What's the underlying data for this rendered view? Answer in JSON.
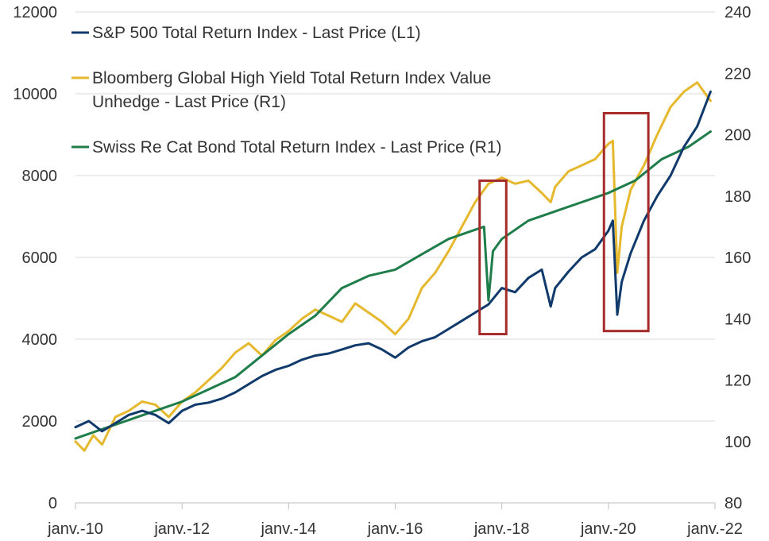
{
  "chart_data": {
    "type": "line",
    "title": "",
    "xlabel": "",
    "ylabel": "",
    "x_ticks": [
      "janv.-10",
      "janv.-12",
      "janv.-14",
      "janv.-16",
      "janv.-18",
      "janv.-20",
      "janv.-22"
    ],
    "y_left": {
      "min": 0,
      "max": 12000,
      "ticks": [
        0,
        2000,
        4000,
        6000,
        8000,
        10000,
        12000
      ]
    },
    "y_right": {
      "min": 80,
      "max": 240,
      "ticks": [
        80,
        100,
        120,
        140,
        160,
        180,
        200,
        220,
        240
      ]
    },
    "xlim": [
      "2010-01",
      "2022-01"
    ],
    "grid": "horizontal",
    "legend_placement": "top-left",
    "series": [
      {
        "name": "S&P 500 Total Return Index - Last Price (L1)",
        "axis": "left",
        "color": "#0f3a6b",
        "data": [
          [
            "2010-01",
            1850
          ],
          [
            "2010-04",
            2000
          ],
          [
            "2010-07",
            1750
          ],
          [
            "2010-10",
            1950
          ],
          [
            "2011-01",
            2150
          ],
          [
            "2011-04",
            2250
          ],
          [
            "2011-07",
            2150
          ],
          [
            "2011-10",
            1950
          ],
          [
            "2012-01",
            2250
          ],
          [
            "2012-04",
            2400
          ],
          [
            "2012-07",
            2450
          ],
          [
            "2012-10",
            2550
          ],
          [
            "2013-01",
            2700
          ],
          [
            "2013-04",
            2900
          ],
          [
            "2013-07",
            3100
          ],
          [
            "2013-10",
            3250
          ],
          [
            "2014-01",
            3350
          ],
          [
            "2014-04",
            3500
          ],
          [
            "2014-07",
            3600
          ],
          [
            "2014-10",
            3650
          ],
          [
            "2015-01",
            3750
          ],
          [
            "2015-04",
            3850
          ],
          [
            "2015-07",
            3900
          ],
          [
            "2015-10",
            3750
          ],
          [
            "2016-01",
            3550
          ],
          [
            "2016-04",
            3800
          ],
          [
            "2016-07",
            3950
          ],
          [
            "2016-10",
            4050
          ],
          [
            "2017-01",
            4250
          ],
          [
            "2017-04",
            4450
          ],
          [
            "2017-07",
            4650
          ],
          [
            "2017-10",
            4850
          ],
          [
            "2018-01",
            5250
          ],
          [
            "2018-04",
            5150
          ],
          [
            "2018-07",
            5500
          ],
          [
            "2018-10",
            5700
          ],
          [
            "2018-12",
            4800
          ],
          [
            "2019-01",
            5250
          ],
          [
            "2019-04",
            5650
          ],
          [
            "2019-07",
            6000
          ],
          [
            "2019-10",
            6200
          ],
          [
            "2020-01",
            6650
          ],
          [
            "2020-02",
            6900
          ],
          [
            "2020-03",
            4600
          ],
          [
            "2020-04",
            5400
          ],
          [
            "2020-06",
            6100
          ],
          [
            "2020-09",
            6900
          ],
          [
            "2020-12",
            7500
          ],
          [
            "2021-03",
            8000
          ],
          [
            "2021-06",
            8700
          ],
          [
            "2021-09",
            9200
          ],
          [
            "2021-12",
            10050
          ]
        ]
      },
      {
        "name": "Bloomberg Global High Yield Total Return Index Value Unhedge - Last Price (R1)",
        "axis": "right",
        "color": "#e5b82d",
        "data": [
          [
            "2010-01",
            100
          ],
          [
            "2010-03",
            97
          ],
          [
            "2010-05",
            102
          ],
          [
            "2010-07",
            99
          ],
          [
            "2010-10",
            108
          ],
          [
            "2011-01",
            110
          ],
          [
            "2011-04",
            113
          ],
          [
            "2011-07",
            112
          ],
          [
            "2011-10",
            108
          ],
          [
            "2012-01",
            113
          ],
          [
            "2012-04",
            116
          ],
          [
            "2012-07",
            120
          ],
          [
            "2012-10",
            124
          ],
          [
            "2013-01",
            129
          ],
          [
            "2013-04",
            132
          ],
          [
            "2013-07",
            128
          ],
          [
            "2013-10",
            133
          ],
          [
            "2014-01",
            136
          ],
          [
            "2014-04",
            140
          ],
          [
            "2014-07",
            143
          ],
          [
            "2014-10",
            141
          ],
          [
            "2015-01",
            139
          ],
          [
            "2015-04",
            145
          ],
          [
            "2015-07",
            142
          ],
          [
            "2015-10",
            139
          ],
          [
            "2016-01",
            135
          ],
          [
            "2016-04",
            140
          ],
          [
            "2016-07",
            150
          ],
          [
            "2016-10",
            155
          ],
          [
            "2017-01",
            162
          ],
          [
            "2017-04",
            170
          ],
          [
            "2017-07",
            178
          ],
          [
            "2017-10",
            184
          ],
          [
            "2018-01",
            186
          ],
          [
            "2018-04",
            184
          ],
          [
            "2018-07",
            185
          ],
          [
            "2018-10",
            181
          ],
          [
            "2018-12",
            178
          ],
          [
            "2019-01",
            183
          ],
          [
            "2019-04",
            188
          ],
          [
            "2019-07",
            190
          ],
          [
            "2019-10",
            192
          ],
          [
            "2020-01",
            197
          ],
          [
            "2020-02",
            198
          ],
          [
            "2020-03",
            155
          ],
          [
            "2020-04",
            170
          ],
          [
            "2020-06",
            182
          ],
          [
            "2020-09",
            190
          ],
          [
            "2020-12",
            200
          ],
          [
            "2021-03",
            209
          ],
          [
            "2021-06",
            214
          ],
          [
            "2021-09",
            217
          ],
          [
            "2021-12",
            211
          ]
        ]
      },
      {
        "name": "Swiss Re Cat Bond Total Return Index - Last Price (R1)",
        "axis": "right",
        "color": "#1f7d4a",
        "data": [
          [
            "2010-01",
            101
          ],
          [
            "2010-07",
            104
          ],
          [
            "2011-01",
            107
          ],
          [
            "2011-07",
            110
          ],
          [
            "2012-01",
            113
          ],
          [
            "2012-07",
            117
          ],
          [
            "2013-01",
            121
          ],
          [
            "2013-07",
            128
          ],
          [
            "2014-01",
            135
          ],
          [
            "2014-07",
            141
          ],
          [
            "2015-01",
            150
          ],
          [
            "2015-07",
            154
          ],
          [
            "2016-01",
            156
          ],
          [
            "2016-07",
            161
          ],
          [
            "2017-01",
            166
          ],
          [
            "2017-07",
            169
          ],
          [
            "2017-09",
            170
          ],
          [
            "2017-10",
            146
          ],
          [
            "2017-11",
            162
          ],
          [
            "2018-01",
            166
          ],
          [
            "2018-07",
            172
          ],
          [
            "2019-01",
            175
          ],
          [
            "2019-07",
            178
          ],
          [
            "2020-01",
            181
          ],
          [
            "2020-07",
            185
          ],
          [
            "2021-01",
            192
          ],
          [
            "2021-07",
            196
          ],
          [
            "2021-12",
            201
          ]
        ]
      }
    ],
    "annotations": [
      {
        "type": "highlight-box",
        "color": "#a52a2a",
        "x_range": [
          "2017-08",
          "2018-02"
        ],
        "y_right_range": [
          135,
          185
        ]
      },
      {
        "type": "highlight-box",
        "color": "#a52a2a",
        "x_range": [
          "2019-12",
          "2020-10"
        ],
        "y_right_range": [
          136,
          207
        ]
      }
    ]
  }
}
